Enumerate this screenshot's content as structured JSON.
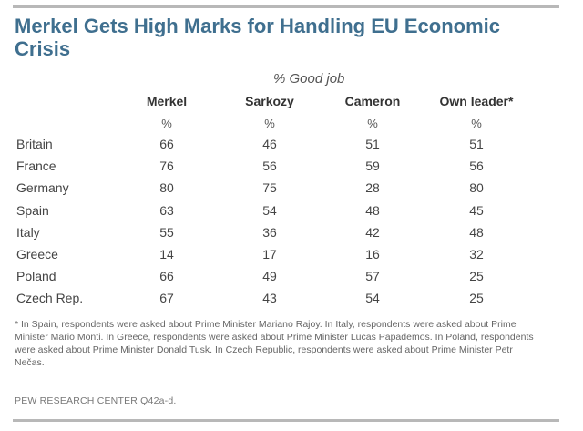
{
  "title": "Merkel Gets High Marks for Handling EU Economic Crisis",
  "chart_data": {
    "type": "table",
    "title": "Merkel Gets High Marks for Handling EU Economic Crisis",
    "subheader": "% Good job",
    "columns": [
      "Merkel",
      "Sarkozy",
      "Cameron",
      "Own leader*"
    ],
    "unit": "%",
    "rows": [
      {
        "country": "Britain",
        "values": [
          66,
          46,
          51,
          51
        ]
      },
      {
        "country": "France",
        "values": [
          76,
          56,
          59,
          56
        ]
      },
      {
        "country": "Germany",
        "values": [
          80,
          75,
          28,
          80
        ]
      },
      {
        "country": "Spain",
        "values": [
          63,
          54,
          48,
          45
        ]
      },
      {
        "country": "Italy",
        "values": [
          55,
          36,
          42,
          48
        ]
      },
      {
        "country": "Greece",
        "values": [
          14,
          17,
          16,
          32
        ]
      },
      {
        "country": "Poland",
        "values": [
          66,
          49,
          57,
          25
        ]
      },
      {
        "country": "Czech Rep.",
        "values": [
          67,
          43,
          54,
          25
        ]
      }
    ],
    "footnote": "* In Spain, respondents were asked about Prime Minister Mariano Rajoy. In Italy, respondents were asked about Prime Minister Mario Monti. In Greece, respondents were asked about Prime Minister Lucas Papademos. In Poland, respondents were asked about Prime Minister Donald Tusk. In Czech Republic, respondents were asked about Prime Minister Petr Nečas.",
    "source": "PEW RESEARCH CENTER Q42a-d."
  },
  "colors": {
    "title": "#3f6f8f",
    "rule": "#b8b8b8",
    "text": "#444444"
  }
}
